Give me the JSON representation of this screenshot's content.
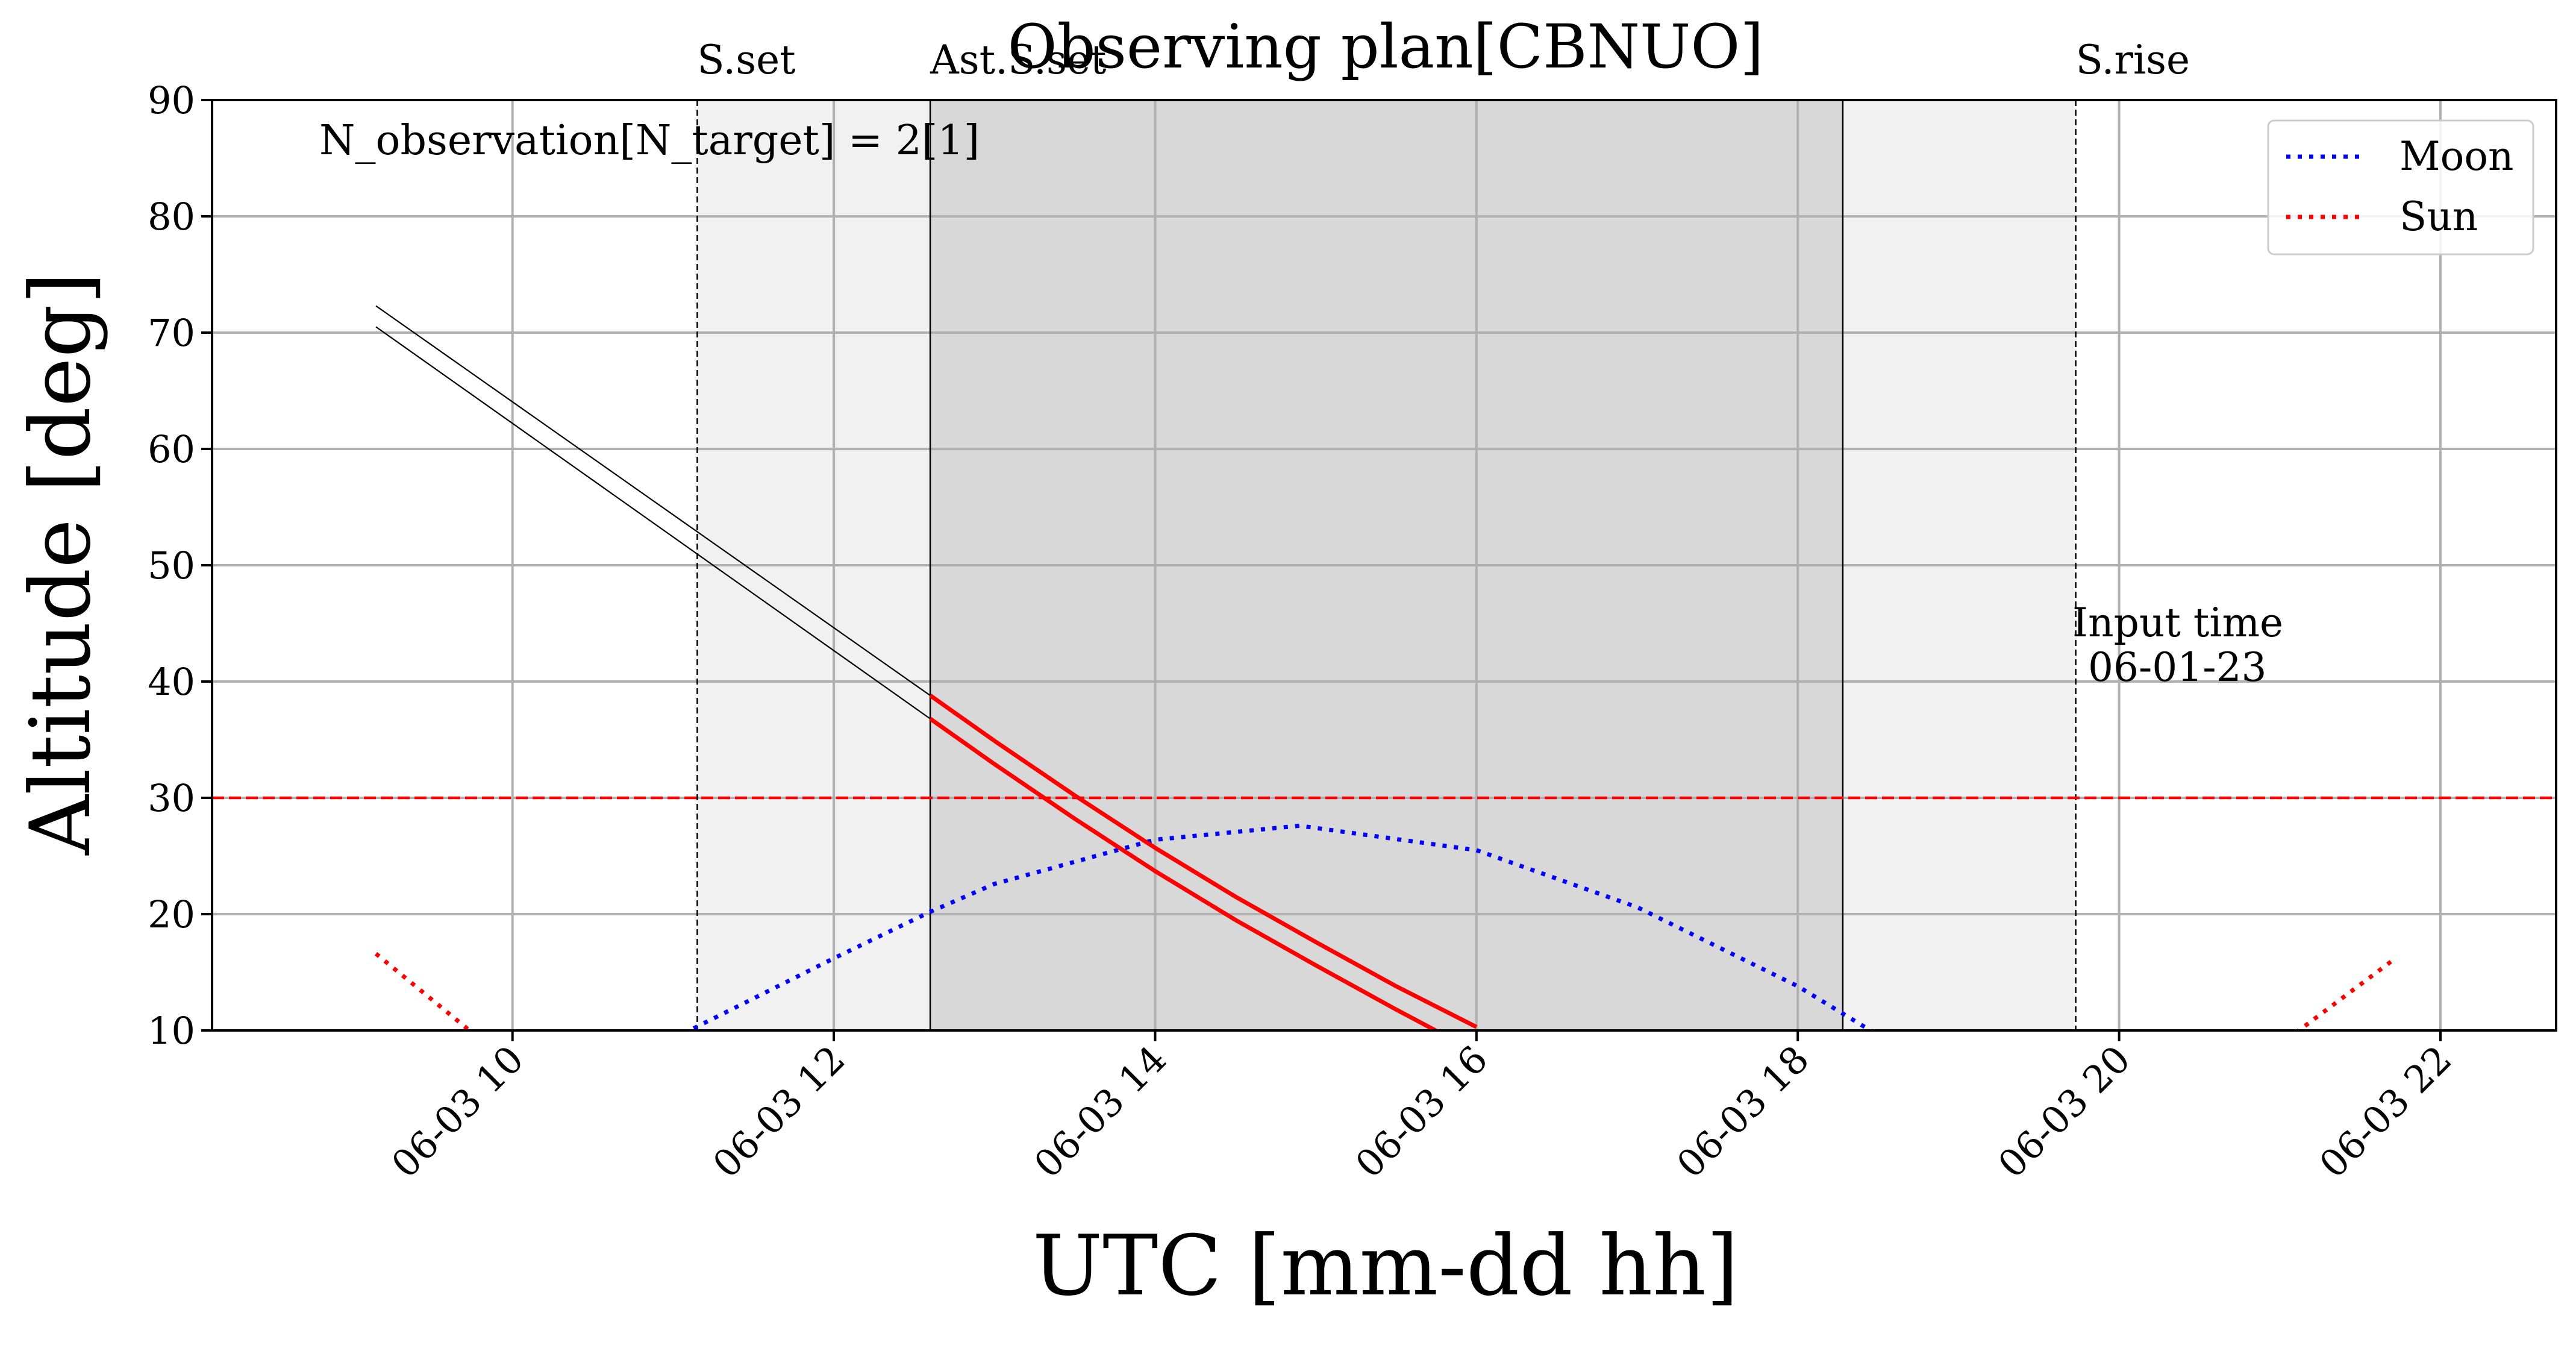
{
  "chart_data": {
    "type": "line",
    "title": "Observing plan[CBNUO]",
    "xlabel": "UTC [mm-dd hh]",
    "ylabel": "Altitude [deg]",
    "annotation": "N_observation[N_target] = 2[1]",
    "input_time_label": "Input time",
    "input_time_value": "06-01-23",
    "xlim": [
      8.13,
      22.72
    ],
    "ylim": [
      10,
      90
    ],
    "x_unit": "hour of 2023-06-03 UTC",
    "xticks": [
      {
        "value": 10,
        "label": "06-03 10"
      },
      {
        "value": 12,
        "label": "06-03 12"
      },
      {
        "value": 14,
        "label": "06-03 14"
      },
      {
        "value": 16,
        "label": "06-03 16"
      },
      {
        "value": 18,
        "label": "06-03 18"
      },
      {
        "value": 20,
        "label": "06-03 20"
      },
      {
        "value": 22,
        "label": "06-03 22"
      }
    ],
    "yticks": [
      10,
      20,
      30,
      40,
      50,
      60,
      70,
      80,
      90
    ],
    "grid": true,
    "legend_position": "top-right",
    "altitude_limit": 30,
    "events": [
      {
        "label": "S.set",
        "x": 11.15,
        "style": "dashed"
      },
      {
        "label": "Ast.S.set",
        "x": 12.6,
        "style": "solid"
      },
      {
        "label": "",
        "x": 18.28,
        "style": "solid"
      },
      {
        "label": "S.rise",
        "x": 19.73,
        "style": "dashed"
      }
    ],
    "shading": [
      {
        "from": 11.15,
        "to": 12.6,
        "level": "twilight"
      },
      {
        "from": 12.6,
        "to": 18.28,
        "level": "night"
      },
      {
        "from": 18.28,
        "to": 19.73,
        "level": "twilight"
      }
    ],
    "series": [
      {
        "name": "Moon",
        "color": "#0000ff",
        "style": "dotted",
        "x": [
          11.0,
          12.0,
          12.6,
          13.0,
          14.0,
          14.9,
          16.0,
          17.0,
          18.0,
          18.5
        ],
        "y": [
          9.3,
          16.2,
          20.2,
          22.6,
          26.4,
          27.6,
          25.5,
          20.6,
          13.8,
          9.6
        ]
      },
      {
        "name": "Sun",
        "color": "#ff0000",
        "style": "dotted",
        "x": [
          9.15,
          9.75,
          21.1,
          21.7
        ],
        "y": [
          16.6,
          9.8,
          9.8,
          16.0
        ]
      },
      {
        "color": "#000000",
        "style": "thin",
        "x": [
          9.15,
          12.6
        ],
        "y": [
          72.3,
          38.8
        ]
      },
      {
        "color": "#000000",
        "style": "thin",
        "x": [
          9.15,
          12.6
        ],
        "y": [
          70.5,
          36.8
        ]
      },
      {
        "color": "#ff0000",
        "style": "solid",
        "x": [
          12.6,
          13.0,
          13.5,
          14.0,
          14.5,
          15.0,
          15.5,
          16.0
        ],
        "y": [
          38.8,
          34.9,
          30.2,
          25.7,
          21.5,
          17.6,
          13.8,
          10.3
        ]
      },
      {
        "color": "#ff0000",
        "style": "solid",
        "x": [
          12.6,
          13.0,
          13.5,
          14.0,
          14.5,
          15.0,
          15.5,
          15.8
        ],
        "y": [
          36.8,
          32.9,
          28.2,
          23.7,
          19.5,
          15.6,
          11.8,
          9.6
        ]
      }
    ]
  }
}
